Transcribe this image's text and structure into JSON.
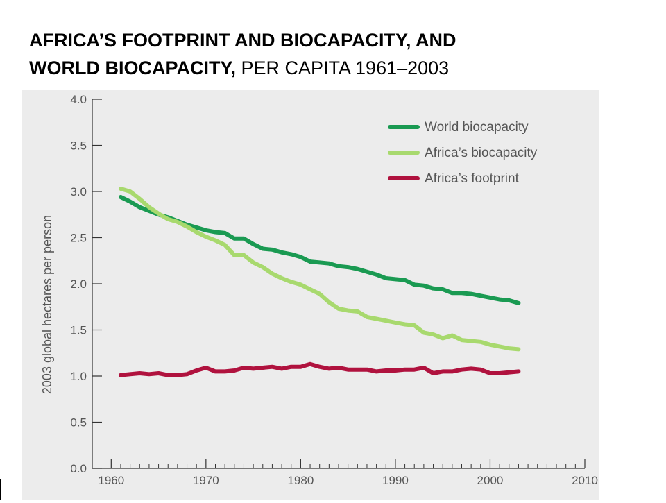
{
  "title": {
    "bold_line1": "AFRICA’S FOOTPRINT AND BIOCAPACITY, AND",
    "bold_line2": "WORLD BIOCAPACITY,",
    "normal_suffix": " PER CAPITA 1961–2003"
  },
  "chart_data": {
    "type": "line",
    "title": "AFRICA’S FOOTPRINT AND BIOCAPACITY, AND WORLD BIOCAPACITY, PER CAPITA 1961–2003",
    "xlabel": "",
    "ylabel": "2003 global hectares per person",
    "xlim": [
      1958,
      2010
    ],
    "ylim": [
      0,
      4.0
    ],
    "x_ticks": [
      1960,
      1970,
      1980,
      1990,
      2000,
      2010
    ],
    "y_ticks": [
      "0.0",
      "0.5",
      "1.0",
      "1.5",
      "2.0",
      "2.5",
      "3.0",
      "3.5",
      "4.0"
    ],
    "grid": false,
    "legend_position": "top-right",
    "series": [
      {
        "name": "World biocapacity",
        "color": "#1a9a52",
        "x": [
          1961,
          1962,
          1963,
          1964,
          1965,
          1966,
          1967,
          1968,
          1969,
          1970,
          1971,
          1972,
          1973,
          1974,
          1975,
          1976,
          1977,
          1978,
          1979,
          1980,
          1981,
          1982,
          1983,
          1984,
          1985,
          1986,
          1987,
          1988,
          1989,
          1990,
          1991,
          1992,
          1993,
          1994,
          1995,
          1996,
          1997,
          1998,
          1999,
          2000,
          2001,
          2002,
          2003
        ],
        "y": [
          2.94,
          2.89,
          2.83,
          2.79,
          2.75,
          2.72,
          2.68,
          2.64,
          2.61,
          2.58,
          2.56,
          2.55,
          2.49,
          2.49,
          2.43,
          2.38,
          2.37,
          2.34,
          2.32,
          2.29,
          2.24,
          2.23,
          2.22,
          2.19,
          2.18,
          2.16,
          2.13,
          2.1,
          2.06,
          2.05,
          2.04,
          1.99,
          1.98,
          1.95,
          1.94,
          1.9,
          1.9,
          1.89,
          1.87,
          1.85,
          1.83,
          1.82,
          1.79
        ]
      },
      {
        "name": "Africa’s biocapacity",
        "color": "#a8d96e",
        "x": [
          1961,
          1962,
          1963,
          1964,
          1965,
          1966,
          1967,
          1968,
          1969,
          1970,
          1971,
          1972,
          1973,
          1974,
          1975,
          1976,
          1977,
          1978,
          1979,
          1980,
          1981,
          1982,
          1983,
          1984,
          1985,
          1986,
          1987,
          1988,
          1989,
          1990,
          1991,
          1992,
          1993,
          1994,
          1995,
          1996,
          1997,
          1998,
          1999,
          2000,
          2001,
          2002,
          2003
        ],
        "y": [
          3.03,
          3.0,
          2.92,
          2.83,
          2.76,
          2.7,
          2.67,
          2.62,
          2.56,
          2.51,
          2.47,
          2.42,
          2.31,
          2.31,
          2.23,
          2.18,
          2.11,
          2.06,
          2.02,
          1.99,
          1.94,
          1.89,
          1.8,
          1.73,
          1.71,
          1.7,
          1.64,
          1.62,
          1.6,
          1.58,
          1.56,
          1.55,
          1.47,
          1.45,
          1.41,
          1.44,
          1.39,
          1.38,
          1.37,
          1.34,
          1.32,
          1.3,
          1.29
        ]
      },
      {
        "name": "Africa’s footprint",
        "color": "#b0123e",
        "x": [
          1961,
          1962,
          1963,
          1964,
          1965,
          1966,
          1967,
          1968,
          1969,
          1970,
          1971,
          1972,
          1973,
          1974,
          1975,
          1976,
          1977,
          1978,
          1979,
          1980,
          1981,
          1982,
          1983,
          1984,
          1985,
          1986,
          1987,
          1988,
          1989,
          1990,
          1991,
          1992,
          1993,
          1994,
          1995,
          1996,
          1997,
          1998,
          1999,
          2000,
          2001,
          2002,
          2003
        ],
        "y": [
          1.01,
          1.02,
          1.03,
          1.02,
          1.03,
          1.01,
          1.01,
          1.02,
          1.06,
          1.09,
          1.05,
          1.05,
          1.06,
          1.09,
          1.08,
          1.09,
          1.1,
          1.08,
          1.1,
          1.1,
          1.13,
          1.1,
          1.08,
          1.09,
          1.07,
          1.07,
          1.07,
          1.05,
          1.06,
          1.06,
          1.07,
          1.07,
          1.09,
          1.03,
          1.05,
          1.05,
          1.07,
          1.08,
          1.07,
          1.03,
          1.03,
          1.04,
          1.05
        ]
      }
    ]
  }
}
